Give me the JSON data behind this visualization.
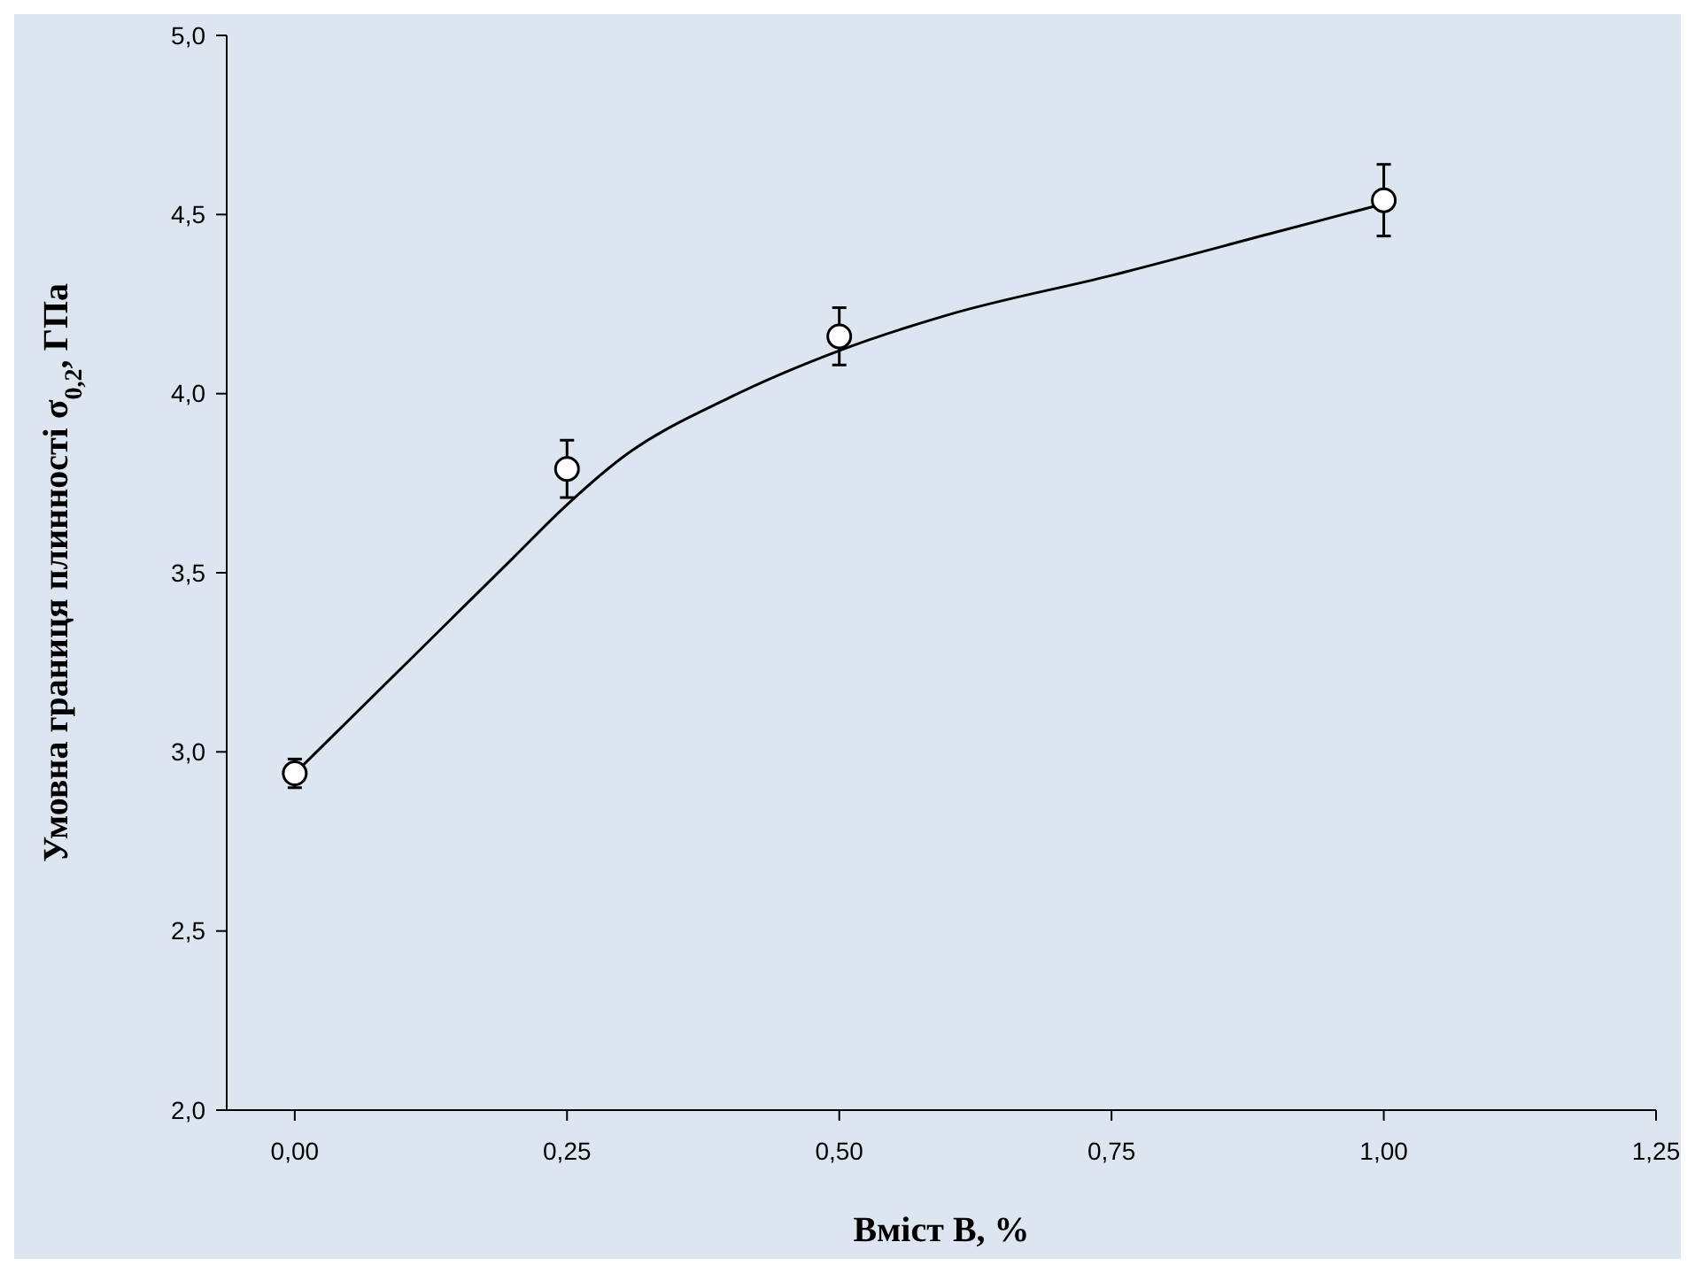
{
  "chart_data": {
    "type": "scatter",
    "xlabel": "Вміст В, %",
    "ylabel": "Умовна границя плинності σ$_{0,2}$, ГПа",
    "xlim": [
      -0.0625,
      1.25
    ],
    "ylim": [
      2,
      5
    ],
    "xticks": [
      {
        "value": 0,
        "label": "0,00"
      },
      {
        "value": 0.25,
        "label": "0,25"
      },
      {
        "value": 0.5,
        "label": "0,50"
      },
      {
        "value": 0.75,
        "label": "0,75"
      },
      {
        "value": 1,
        "label": "1,00"
      },
      {
        "value": 1.25,
        "label": "1,25"
      }
    ],
    "yticks": [
      {
        "value": 2,
        "label": "2,0"
      },
      {
        "value": 2.5,
        "label": "2,5"
      },
      {
        "value": 3,
        "label": "3,0"
      },
      {
        "value": 3.5,
        "label": "3,5"
      },
      {
        "value": 4,
        "label": "4,0"
      },
      {
        "value": 4.5,
        "label": "4,5"
      },
      {
        "value": 5,
        "label": "5,0"
      }
    ],
    "grid": false,
    "series": [
      {
        "type": "line",
        "color": "#000000",
        "x": [
          0,
          0.1,
          0.2,
          0.25,
          0.3,
          0.4,
          0.5,
          0.6,
          0.75,
          0.9,
          1
        ],
        "values": [
          2.94,
          3.24,
          3.54,
          3.69,
          3.82,
          3.99,
          4.12,
          4.22,
          4.33,
          4.45,
          4.53
        ]
      },
      {
        "color": "#ffffff",
        "marker": "circle",
        "x": [
          0,
          0.25,
          0.5,
          1
        ],
        "values": [
          2.94,
          3.79,
          4.16,
          4.54
        ],
        "errors": [
          0.04,
          0.08,
          0.08,
          0.1
        ]
      }
    ]
  }
}
